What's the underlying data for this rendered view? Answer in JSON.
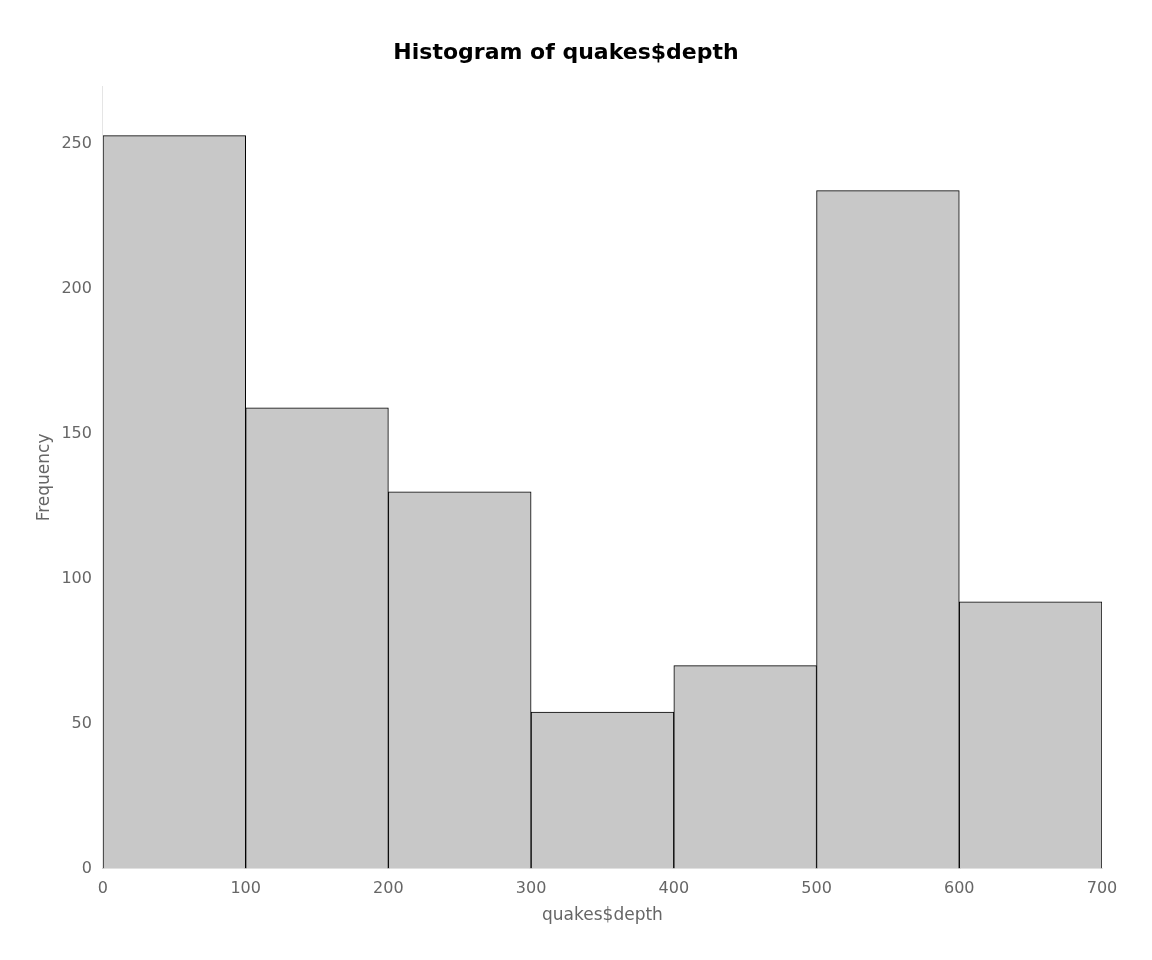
{
  "chart_data": {
    "type": "histogram",
    "title": "Histogram of quakes$depth",
    "xlabel": "quakes$depth",
    "ylabel": "Frequency",
    "bins": [
      0,
      100,
      200,
      300,
      400,
      500,
      600,
      700
    ],
    "values": [
      253,
      159,
      130,
      54,
      70,
      234,
      92
    ],
    "color": "#c8c8c8",
    "xlim": [
      0,
      700
    ],
    "ylim": [
      0,
      270
    ],
    "xticks": [
      0,
      100,
      200,
      300,
      400,
      500,
      600,
      700
    ],
    "yticks": [
      0,
      50,
      100,
      150,
      200,
      250
    ],
    "grid": false
  }
}
